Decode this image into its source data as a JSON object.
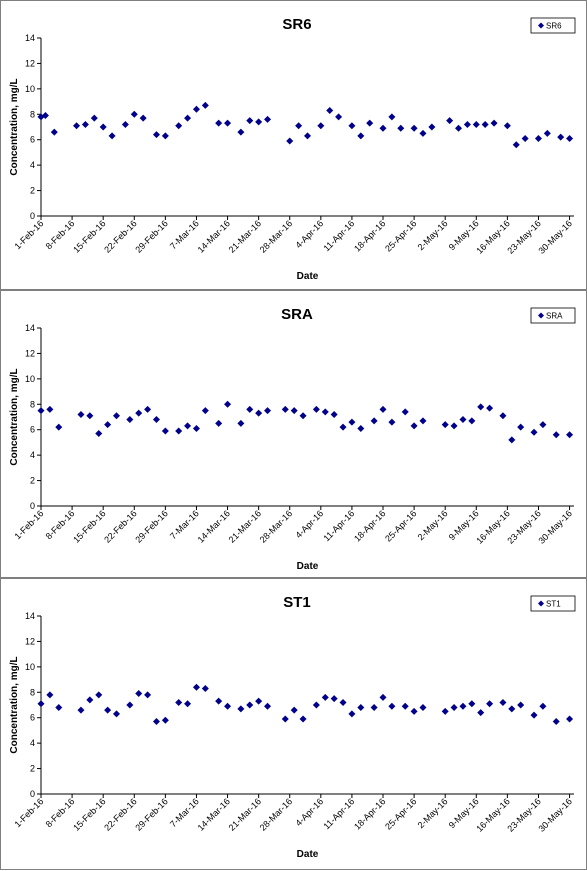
{
  "page": {
    "x_tick_labels": [
      "1-Feb-16",
      "8-Feb-16",
      "15-Feb-16",
      "22-Feb-16",
      "29-Feb-16",
      "7-Mar-16",
      "14-Mar-16",
      "21-Mar-16",
      "28-Mar-16",
      "4-Apr-16",
      "11-Apr-16",
      "18-Apr-16",
      "25-Apr-16",
      "2-May-16",
      "9-May-16",
      "16-May-16",
      "23-May-16",
      "30-May-16"
    ],
    "y_ticks": [
      0,
      2,
      4,
      6,
      8,
      10,
      12,
      14
    ],
    "marker_color": "#00008B"
  },
  "chart_data": [
    {
      "type": "scatter",
      "title": "SR6",
      "xlabel": "Date",
      "ylabel": "Concentration, mg/L",
      "xlim": [
        "2016-02-01",
        "2016-05-31"
      ],
      "ylim": [
        0,
        14
      ],
      "legend": "top-right",
      "grid": false,
      "series": [
        {
          "name": "SR6",
          "points": [
            [
              "2016-02-01",
              7.8
            ],
            [
              "2016-02-02",
              7.9
            ],
            [
              "2016-02-04",
              6.6
            ],
            [
              "2016-02-09",
              7.1
            ],
            [
              "2016-02-11",
              7.2
            ],
            [
              "2016-02-13",
              7.7
            ],
            [
              "2016-02-15",
              7.0
            ],
            [
              "2016-02-17",
              6.3
            ],
            [
              "2016-02-20",
              7.2
            ],
            [
              "2016-02-22",
              8.0
            ],
            [
              "2016-02-24",
              7.7
            ],
            [
              "2016-02-27",
              6.4
            ],
            [
              "2016-02-29",
              6.3
            ],
            [
              "2016-03-03",
              7.1
            ],
            [
              "2016-03-05",
              7.7
            ],
            [
              "2016-03-07",
              8.4
            ],
            [
              "2016-03-09",
              8.7
            ],
            [
              "2016-03-12",
              7.3
            ],
            [
              "2016-03-14",
              7.3
            ],
            [
              "2016-03-17",
              6.6
            ],
            [
              "2016-03-19",
              7.5
            ],
            [
              "2016-03-21",
              7.4
            ],
            [
              "2016-03-23",
              7.6
            ],
            [
              "2016-03-28",
              5.9
            ],
            [
              "2016-03-30",
              7.1
            ],
            [
              "2016-04-01",
              6.3
            ],
            [
              "2016-04-04",
              7.1
            ],
            [
              "2016-04-06",
              8.3
            ],
            [
              "2016-04-08",
              7.8
            ],
            [
              "2016-04-11",
              7.1
            ],
            [
              "2016-04-13",
              6.3
            ],
            [
              "2016-04-15",
              7.3
            ],
            [
              "2016-04-18",
              6.9
            ],
            [
              "2016-04-20",
              7.8
            ],
            [
              "2016-04-22",
              6.9
            ],
            [
              "2016-04-25",
              6.9
            ],
            [
              "2016-04-27",
              6.5
            ],
            [
              "2016-04-29",
              7.0
            ],
            [
              "2016-05-03",
              7.5
            ],
            [
              "2016-05-05",
              6.9
            ],
            [
              "2016-05-07",
              7.2
            ],
            [
              "2016-05-09",
              7.2
            ],
            [
              "2016-05-11",
              7.2
            ],
            [
              "2016-05-13",
              7.3
            ],
            [
              "2016-05-16",
              7.1
            ],
            [
              "2016-05-18",
              5.6
            ],
            [
              "2016-05-20",
              6.1
            ],
            [
              "2016-05-23",
              6.1
            ],
            [
              "2016-05-25",
              6.5
            ],
            [
              "2016-05-28",
              6.2
            ],
            [
              "2016-05-30",
              6.1
            ]
          ]
        }
      ]
    },
    {
      "type": "scatter",
      "title": "SRA",
      "xlabel": "Date",
      "ylabel": "Concentration, mg/L",
      "xlim": [
        "2016-02-01",
        "2016-05-31"
      ],
      "ylim": [
        0,
        14
      ],
      "legend": "top-right",
      "grid": false,
      "series": [
        {
          "name": "SRA",
          "points": [
            [
              "2016-02-01",
              7.5
            ],
            [
              "2016-02-03",
              7.6
            ],
            [
              "2016-02-05",
              6.2
            ],
            [
              "2016-02-10",
              7.2
            ],
            [
              "2016-02-12",
              7.1
            ],
            [
              "2016-02-14",
              5.7
            ],
            [
              "2016-02-16",
              6.4
            ],
            [
              "2016-02-18",
              7.1
            ],
            [
              "2016-02-21",
              6.8
            ],
            [
              "2016-02-23",
              7.3
            ],
            [
              "2016-02-25",
              7.6
            ],
            [
              "2016-02-27",
              6.8
            ],
            [
              "2016-02-29",
              5.9
            ],
            [
              "2016-03-03",
              5.9
            ],
            [
              "2016-03-05",
              6.3
            ],
            [
              "2016-03-07",
              6.1
            ],
            [
              "2016-03-09",
              7.5
            ],
            [
              "2016-03-12",
              6.5
            ],
            [
              "2016-03-14",
              8.0
            ],
            [
              "2016-03-17",
              6.5
            ],
            [
              "2016-03-19",
              7.6
            ],
            [
              "2016-03-21",
              7.3
            ],
            [
              "2016-03-23",
              7.5
            ],
            [
              "2016-03-27",
              7.6
            ],
            [
              "2016-03-29",
              7.5
            ],
            [
              "2016-03-31",
              7.1
            ],
            [
              "2016-04-03",
              7.6
            ],
            [
              "2016-04-05",
              7.4
            ],
            [
              "2016-04-07",
              7.2
            ],
            [
              "2016-04-09",
              6.2
            ],
            [
              "2016-04-11",
              6.6
            ],
            [
              "2016-04-13",
              6.1
            ],
            [
              "2016-04-16",
              6.7
            ],
            [
              "2016-04-18",
              7.6
            ],
            [
              "2016-04-20",
              6.6
            ],
            [
              "2016-04-23",
              7.4
            ],
            [
              "2016-04-25",
              6.3
            ],
            [
              "2016-04-27",
              6.7
            ],
            [
              "2016-05-02",
              6.4
            ],
            [
              "2016-05-04",
              6.3
            ],
            [
              "2016-05-06",
              6.8
            ],
            [
              "2016-05-08",
              6.7
            ],
            [
              "2016-05-10",
              7.8
            ],
            [
              "2016-05-12",
              7.7
            ],
            [
              "2016-05-15",
              7.1
            ],
            [
              "2016-05-17",
              5.2
            ],
            [
              "2016-05-19",
              6.2
            ],
            [
              "2016-05-22",
              5.8
            ],
            [
              "2016-05-24",
              6.4
            ],
            [
              "2016-05-27",
              5.6
            ],
            [
              "2016-05-30",
              5.6
            ]
          ]
        }
      ]
    },
    {
      "type": "scatter",
      "title": "ST1",
      "xlabel": "Date",
      "ylabel": "Concentration, mg/L",
      "xlim": [
        "2016-02-01",
        "2016-05-31"
      ],
      "ylim": [
        0,
        14
      ],
      "legend": "top-right",
      "grid": false,
      "series": [
        {
          "name": "ST1",
          "points": [
            [
              "2016-02-01",
              7.1
            ],
            [
              "2016-02-03",
              7.8
            ],
            [
              "2016-02-05",
              6.8
            ],
            [
              "2016-02-10",
              6.6
            ],
            [
              "2016-02-12",
              7.4
            ],
            [
              "2016-02-14",
              7.8
            ],
            [
              "2016-02-16",
              6.6
            ],
            [
              "2016-02-18",
              6.3
            ],
            [
              "2016-02-21",
              7.0
            ],
            [
              "2016-02-23",
              7.9
            ],
            [
              "2016-02-25",
              7.8
            ],
            [
              "2016-02-27",
              5.7
            ],
            [
              "2016-02-29",
              5.8
            ],
            [
              "2016-03-03",
              7.2
            ],
            [
              "2016-03-05",
              7.1
            ],
            [
              "2016-03-07",
              8.4
            ],
            [
              "2016-03-09",
              8.3
            ],
            [
              "2016-03-12",
              7.3
            ],
            [
              "2016-03-14",
              6.9
            ],
            [
              "2016-03-17",
              6.7
            ],
            [
              "2016-03-19",
              7.0
            ],
            [
              "2016-03-21",
              7.3
            ],
            [
              "2016-03-23",
              6.9
            ],
            [
              "2016-03-27",
              5.9
            ],
            [
              "2016-03-29",
              6.6
            ],
            [
              "2016-03-31",
              5.9
            ],
            [
              "2016-04-03",
              7.0
            ],
            [
              "2016-04-05",
              7.6
            ],
            [
              "2016-04-07",
              7.5
            ],
            [
              "2016-04-09",
              7.2
            ],
            [
              "2016-04-11",
              6.3
            ],
            [
              "2016-04-13",
              6.8
            ],
            [
              "2016-04-16",
              6.8
            ],
            [
              "2016-04-18",
              7.6
            ],
            [
              "2016-04-20",
              6.9
            ],
            [
              "2016-04-23",
              6.9
            ],
            [
              "2016-04-25",
              6.5
            ],
            [
              "2016-04-27",
              6.8
            ],
            [
              "2016-05-02",
              6.5
            ],
            [
              "2016-05-04",
              6.8
            ],
            [
              "2016-05-06",
              6.9
            ],
            [
              "2016-05-08",
              7.1
            ],
            [
              "2016-05-10",
              6.4
            ],
            [
              "2016-05-12",
              7.1
            ],
            [
              "2016-05-15",
              7.2
            ],
            [
              "2016-05-17",
              6.7
            ],
            [
              "2016-05-19",
              7.0
            ],
            [
              "2016-05-22",
              6.2
            ],
            [
              "2016-05-24",
              6.9
            ],
            [
              "2016-05-27",
              5.7
            ],
            [
              "2016-05-30",
              5.9
            ]
          ]
        }
      ]
    }
  ]
}
